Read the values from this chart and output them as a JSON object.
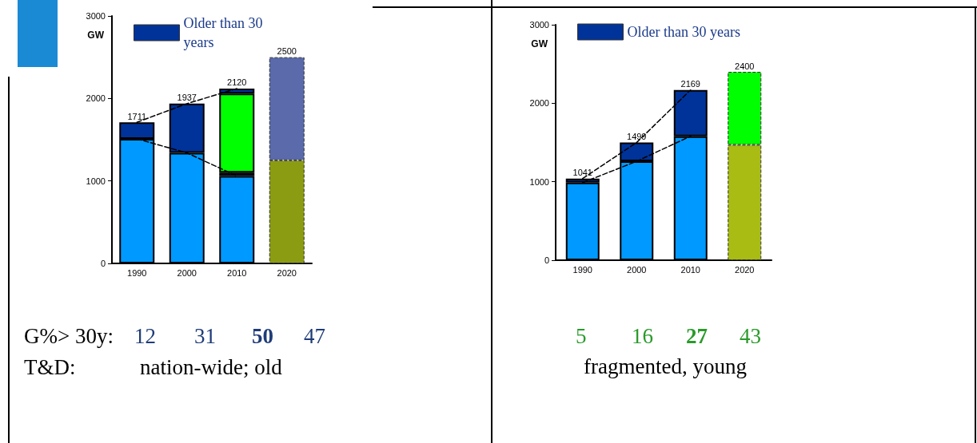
{
  "chart_data": [
    {
      "type": "bar",
      "stacked": true,
      "categories": [
        "1990",
        "2000",
        "2010",
        "2020"
      ],
      "ylabel": "GW",
      "ylim": [
        0,
        3000
      ],
      "yticks": [
        0,
        1000,
        2000,
        3000
      ],
      "grid": false,
      "legend": "top",
      "totals": [
        "1711",
        "1937",
        "2120",
        "2500"
      ],
      "series": [
        {
          "color": "#0099ff",
          "values": [
            1510,
            1340,
            1060,
            null
          ]
        },
        {
          "name": "Older than 30 years",
          "color": "#003399",
          "values": [
            201,
            597,
            40,
            null
          ]
        },
        {
          "color": "#00ff00",
          "values": [
            null,
            null,
            960,
            null
          ]
        },
        {
          "color": "#003399",
          "values": [
            null,
            null,
            60,
            null
          ]
        },
        {
          "color": "#8c9c12",
          "values": [
            null,
            null,
            null,
            1250
          ]
        },
        {
          "color": "#5a6aaa",
          "values": [
            null,
            null,
            null,
            1250
          ]
        },
        {
          "type": "line",
          "color": "#000000",
          "line_style": "dashed",
          "marker": "none",
          "values": [
            1711,
            1937,
            2120,
            null
          ]
        },
        {
          "type": "line",
          "color": "#000000",
          "line_style": "dashed",
          "marker": "none",
          "values": [
            1510,
            1340,
            1060,
            null
          ]
        }
      ],
      "annotations": [
        "G%> 30y:",
        "12",
        "31",
        "50",
        "47",
        "T&D:",
        "nation-wide; old"
      ]
    },
    {
      "type": "bar",
      "stacked": true,
      "categories": [
        "1990",
        "2000",
        "2010",
        "2020"
      ],
      "ylabel": "GW",
      "ylim": [
        0,
        3000
      ],
      "yticks": [
        0,
        1000,
        2000,
        3000
      ],
      "grid": false,
      "legend": "top",
      "totals": [
        "1041",
        "1499",
        "2169",
        "2400"
      ],
      "series": [
        {
          "color": "#0099ff",
          "values": [
            989,
            1260,
            1580,
            null
          ]
        },
        {
          "name": "Older than 30 years",
          "color": "#003399",
          "values": [
            52,
            239,
            589,
            null
          ]
        },
        {
          "color": "#a8bc14",
          "values": [
            null,
            null,
            null,
            1470
          ]
        },
        {
          "color": "#00ff00",
          "values": [
            null,
            null,
            null,
            930
          ]
        },
        {
          "type": "line",
          "color": "#000000",
          "line_style": "dashed",
          "marker": "none",
          "values": [
            1041,
            1499,
            2169,
            null
          ]
        },
        {
          "type": "line",
          "color": "#000000",
          "line_style": "dashed",
          "marker": "none",
          "values": [
            989,
            1260,
            1580,
            null
          ]
        }
      ],
      "annotations": [
        "5",
        "16",
        "27",
        "43",
        "fragmented, young"
      ]
    }
  ]
}
